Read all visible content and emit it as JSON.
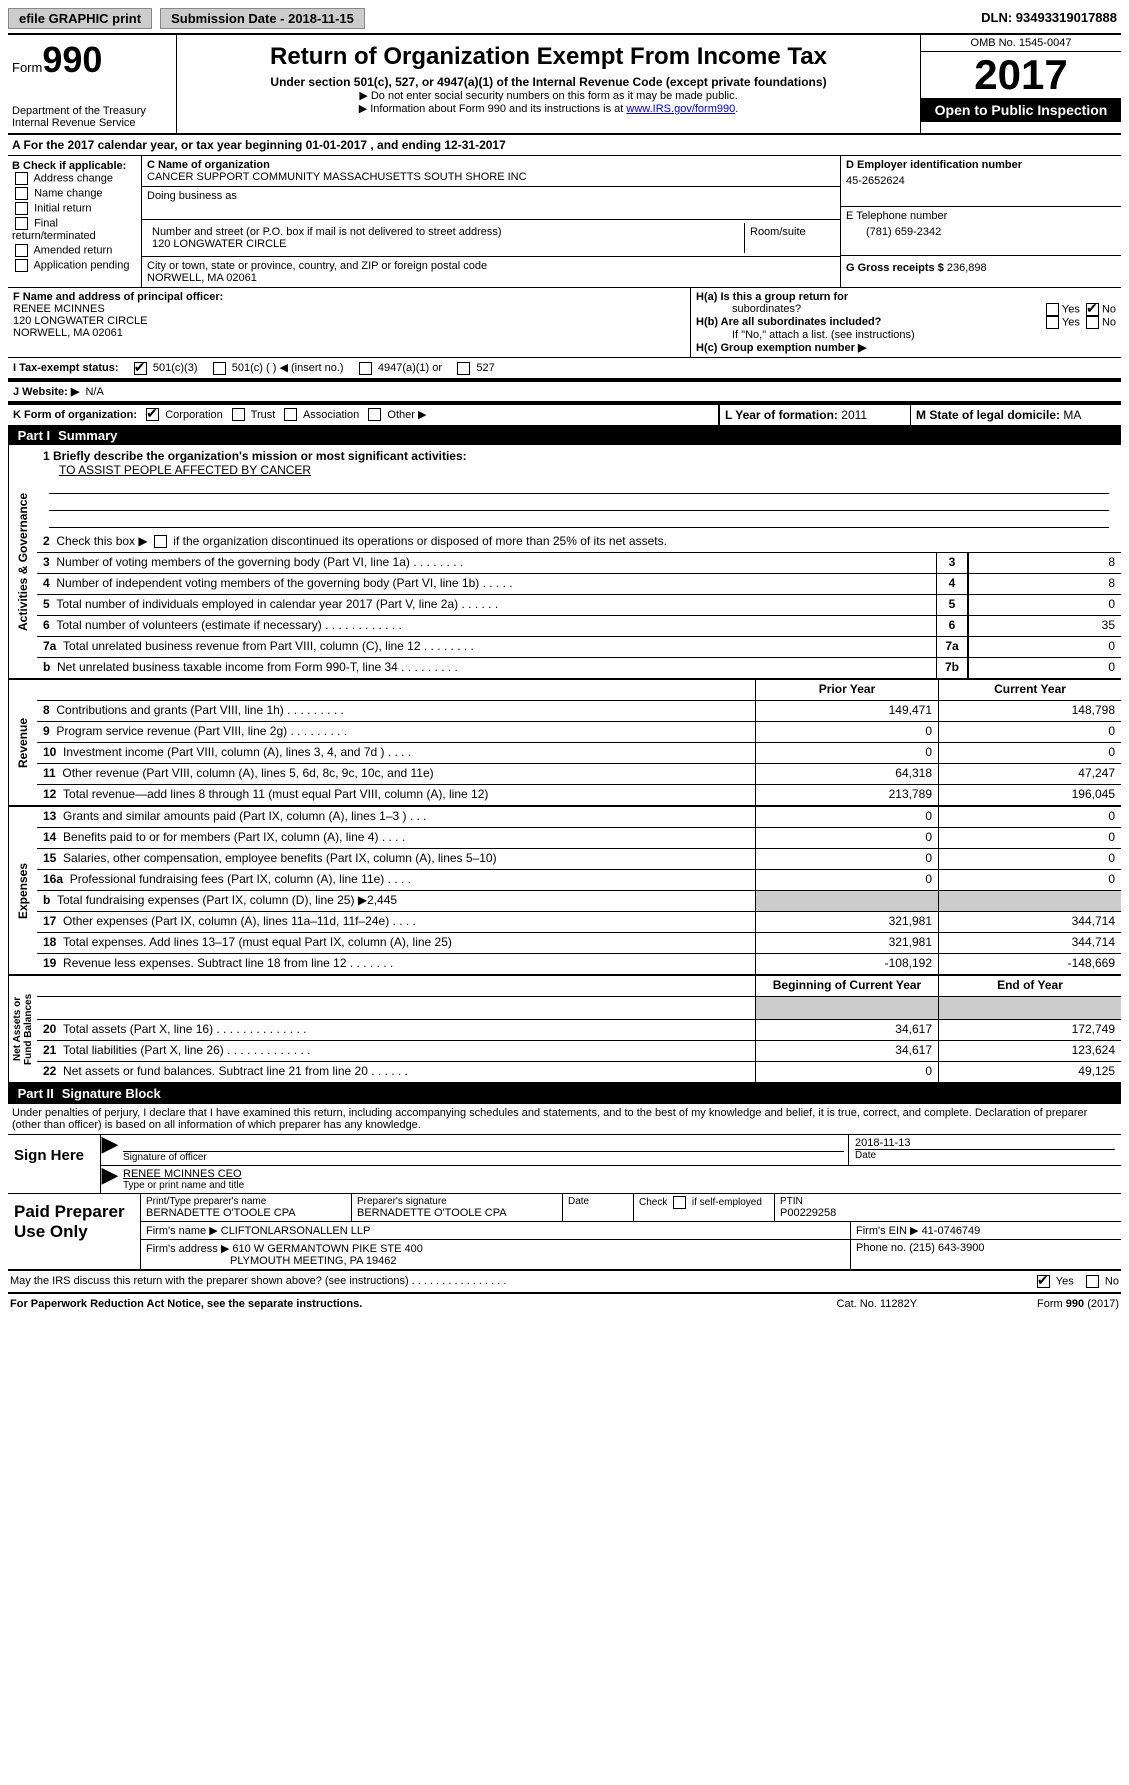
{
  "top_bar": {
    "efile_btn": "efile GRAPHIC print",
    "submission": "Submission Date - 2018-11-15",
    "dln": "DLN: 93493319017888"
  },
  "header": {
    "form_word": "Form",
    "form_num": "990",
    "dept1": "Department of the Treasury",
    "dept2": "Internal Revenue Service",
    "title": "Return of Organization Exempt From Income Tax",
    "subtitle": "Under section 501(c), 527, or 4947(a)(1) of the Internal Revenue Code (except private foundations)",
    "note1": "▶ Do not enter social security numbers on this form as it may be made public.",
    "note2_pre": "▶ Information about Form 990 and its instructions is at ",
    "note2_link": "www.IRS.gov/form990",
    "omb": "OMB No. 1545-0047",
    "year": "2017",
    "open_public": "Open to Public Inspection"
  },
  "section_a": "A  For the 2017 calendar year, or tax year beginning 01-01-2017   , and ending 12-31-2017",
  "col_b": {
    "header": "B Check if applicable:",
    "items": [
      "Address change",
      "Name change",
      "Initial return",
      "Final return/terminated",
      "Amended return",
      "Application pending"
    ]
  },
  "col_c": {
    "name_label": "C Name of organization",
    "name": "CANCER SUPPORT COMMUNITY MASSACHUSETTS SOUTH SHORE INC",
    "dba_label": "Doing business as",
    "street_label": "Number and street (or P.O. box if mail is not delivered to street address)",
    "street": "120 LONGWATER CIRCLE",
    "room_label": "Room/suite",
    "city_label": "City or town, state or province, country, and ZIP or foreign postal code",
    "city": "NORWELL, MA  02061"
  },
  "col_d": {
    "ein_label": "D Employer identification number",
    "ein": "45-2652624",
    "phone_label": "E Telephone number",
    "phone": "(781) 659-2342",
    "gross_label": "G Gross receipts $",
    "gross": "236,898"
  },
  "section_f": {
    "label": "F  Name and address of principal officer:",
    "name": "RENEE MCINNES",
    "street": "120 LONGWATER CIRCLE",
    "city": "NORWELL, MA  02061"
  },
  "section_h": {
    "ha_label": "H(a)  Is this a group return for",
    "ha_label2": "subordinates?",
    "hb_label": "H(b)  Are all subordinates included?",
    "hb_note": "If \"No,\" attach a list. (see instructions)",
    "hc_label": "H(c)  Group exemption number ▶"
  },
  "section_i": {
    "label": "I  Tax-exempt status:",
    "opts": [
      "501(c)(3)",
      "501(c) (   ) ◀ (insert no.)",
      "4947(a)(1) or",
      "527"
    ]
  },
  "section_j": {
    "label": "J  Website: ▶",
    "value": "N/A"
  },
  "section_k": {
    "label": "K Form of organization:",
    "opts": [
      "Corporation",
      "Trust",
      "Association",
      "Other ▶"
    ]
  },
  "section_l": {
    "label": "L Year of formation:",
    "value": "2011"
  },
  "section_m": {
    "label": "M State of legal domicile:",
    "value": "MA"
  },
  "part1": {
    "header": "Part I",
    "title": "Summary",
    "line1_label": "1  Briefly describe the organization's mission or most significant activities:",
    "mission": "TO ASSIST PEOPLE AFFECTED BY CANCER",
    "line2": "2  Check this box ▶     if the organization discontinued its operations or disposed of more than 25% of its net assets.",
    "rows_gov": [
      {
        "n": "3",
        "desc": "Number of voting members of the governing body (Part VI, line 1a)  .    .    .    .    .    .    .    .",
        "lbl": "3",
        "val": "8"
      },
      {
        "n": "4",
        "desc": "Number of independent voting members of the governing body (Part VI, line 1b)  .    .    .    .    .",
        "lbl": "4",
        "val": "8"
      },
      {
        "n": "5",
        "desc": "Total number of individuals employed in calendar year 2017 (Part V, line 2a)  .    .    .    .    .    .",
        "lbl": "5",
        "val": "0"
      },
      {
        "n": "6",
        "desc": "Total number of volunteers (estimate if necessary)  .    .    .    .    .    .    .    .    .    .    .    .",
        "lbl": "6",
        "val": "35"
      },
      {
        "n": "7a",
        "desc": "Total unrelated business revenue from Part VIII, column (C), line 12  .    .    .    .    .    .    .    .",
        "lbl": "7a",
        "val": "0"
      },
      {
        "n": "b",
        "desc": "Net unrelated business taxable income from Form 990-T, line 34  .    .    .    .    .    .    .    .    .",
        "lbl": "7b",
        "val": "0"
      }
    ],
    "prior_year": "Prior Year",
    "current_year": "Current Year",
    "rows_rev": [
      {
        "n": "8",
        "desc": "Contributions and grants (Part VIII, line 1h)  .    .    .    .    .    .    .    .    .",
        "py": "149,471",
        "cy": "148,798"
      },
      {
        "n": "9",
        "desc": "Program service revenue (Part VIII, line 2g)  .    .    .    .    .    .    .    .    .",
        "py": "0",
        "cy": "0"
      },
      {
        "n": "10",
        "desc": "Investment income (Part VIII, column (A), lines 3, 4, and 7d )  .    .    .    .",
        "py": "0",
        "cy": "0"
      },
      {
        "n": "11",
        "desc": "Other revenue (Part VIII, column (A), lines 5, 6d, 8c, 9c, 10c, and 11e)",
        "py": "64,318",
        "cy": "47,247"
      },
      {
        "n": "12",
        "desc": "Total revenue—add lines 8 through 11 (must equal Part VIII, column (A), line 12)",
        "py": "213,789",
        "cy": "196,045"
      }
    ],
    "rows_exp": [
      {
        "n": "13",
        "desc": "Grants and similar amounts paid (Part IX, column (A), lines 1–3 )  .    .    .",
        "py": "0",
        "cy": "0"
      },
      {
        "n": "14",
        "desc": "Benefits paid to or for members (Part IX, column (A), line 4)  .    .    .    .",
        "py": "0",
        "cy": "0"
      },
      {
        "n": "15",
        "desc": "Salaries, other compensation, employee benefits (Part IX, column (A), lines 5–10)",
        "py": "0",
        "cy": "0"
      },
      {
        "n": "16a",
        "desc": "Professional fundraising fees (Part IX, column (A), line 11e)  .    .    .    .",
        "py": "0",
        "cy": "0"
      },
      {
        "n": "b",
        "desc": "Total fundraising expenses (Part IX, column (D), line 25) ▶2,445",
        "py": "",
        "cy": "",
        "grey": true
      },
      {
        "n": "17",
        "desc": "Other expenses (Part IX, column (A), lines 11a–11d, 11f–24e)  .    .    .    .",
        "py": "321,981",
        "cy": "344,714"
      },
      {
        "n": "18",
        "desc": "Total expenses. Add lines 13–17 (must equal Part IX, column (A), line 25)",
        "py": "321,981",
        "cy": "344,714"
      },
      {
        "n": "19",
        "desc": "Revenue less expenses. Subtract line 18 from line 12  .    .    .    .    .    .    .",
        "py": "-108,192",
        "cy": "-148,669"
      }
    ],
    "begin_year": "Beginning of Current Year",
    "end_year": "End of Year",
    "rows_net": [
      {
        "n": "20",
        "desc": "Total assets (Part X, line 16)  .    .    .    .    .    .    .    .    .    .    .    .    .    .",
        "py": "34,617",
        "cy": "172,749"
      },
      {
        "n": "21",
        "desc": "Total liabilities (Part X, line 26)  .    .    .    .    .    .    .    .    .    .    .    .    .",
        "py": "34,617",
        "cy": "123,624"
      },
      {
        "n": "22",
        "desc": "Net assets or fund balances. Subtract line 21 from line 20 .    .    .    .    .    .",
        "py": "0",
        "cy": "49,125"
      }
    ]
  },
  "part2": {
    "header": "Part II",
    "title": "Signature Block",
    "perjury": "Under penalties of perjury, I declare that I have examined this return, including accompanying schedules and statements, and to the best of my knowledge and belief, it is true, correct, and complete. Declaration of preparer (other than officer) is based on all information of which preparer has any knowledge.",
    "sign_here": "Sign Here",
    "sig_officer": "Signature of officer",
    "sig_date": "2018-11-13",
    "date_lbl": "Date",
    "name_title": "RENEE MCINNES CEO",
    "name_title_lbl": "Type or print name and title",
    "paid_prep": "Paid Preparer Use Only",
    "prep_name_lbl": "Print/Type preparer's name",
    "prep_name": "BERNADETTE O'TOOLE CPA",
    "prep_sig_lbl": "Preparer's signature",
    "prep_sig": "BERNADETTE O'TOOLE CPA",
    "prep_date_lbl": "Date",
    "self_emp": "Check        if self-employed",
    "ptin_lbl": "PTIN",
    "ptin": "P00229258",
    "firm_name_lbl": "Firm's name      ▶",
    "firm_name": "CLIFTONLARSONALLEN LLP",
    "firm_ein_lbl": "Firm's EIN ▶",
    "firm_ein": "41-0746749",
    "firm_addr_lbl": "Firm's address ▶",
    "firm_addr1": "610 W GERMANTOWN PIKE STE 400",
    "firm_addr2": "PLYMOUTH MEETING, PA  19462",
    "phone_lbl": "Phone no.",
    "phone": "(215) 643-3900"
  },
  "footer": {
    "discuss": "May the IRS discuss this return with the preparer shown above? (see instructions)  .    .    .    .    .    .    .    .    .    .    .    .    .    .    .    .",
    "paperwork": "For Paperwork Reduction Act Notice, see the separate instructions.",
    "cat": "Cat. No. 11282Y",
    "form": "Form 990 (2017)"
  }
}
